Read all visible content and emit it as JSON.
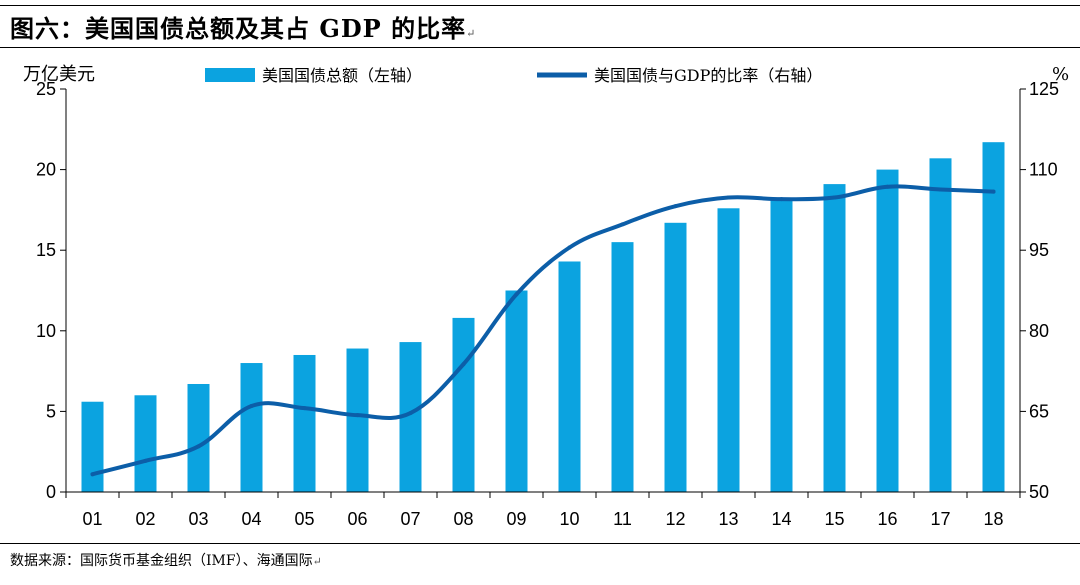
{
  "figure": {
    "title": "图六：美国国债总额及其占 GDP 的比率",
    "source": "数据来源：国际货币基金组织（IMF）、海通国际",
    "paragraph_mark": "↵"
  },
  "colors": {
    "bar": "#0BA3E0",
    "line": "#0C5EA8",
    "axis": "#000000"
  },
  "chart_data": {
    "type": "bar",
    "title": "",
    "categories": [
      "01",
      "02",
      "03",
      "04",
      "05",
      "06",
      "07",
      "08",
      "09",
      "10",
      "11",
      "12",
      "13",
      "14",
      "15",
      "16",
      "17",
      "18"
    ],
    "series": [
      {
        "name": "美国国债总额（左轴）",
        "type": "bar",
        "axis": "left",
        "values": [
          5.6,
          6.0,
          6.7,
          8.0,
          8.5,
          8.9,
          9.3,
          10.8,
          12.5,
          14.3,
          15.5,
          16.7,
          17.6,
          18.2,
          19.1,
          20.0,
          20.7,
          21.7
        ]
      },
      {
        "name": "美国国债与GDP的比率（右轴）",
        "type": "line",
        "axis": "right",
        "values": [
          53.3,
          55.8,
          58.5,
          66.0,
          65.6,
          64.3,
          64.7,
          73.8,
          86.8,
          95.5,
          99.8,
          103.2,
          104.8,
          104.5,
          104.8,
          106.8,
          106.3,
          105.9
        ]
      }
    ],
    "y_left": {
      "unit": "万亿美元",
      "ylim": [
        0,
        25
      ],
      "ticks": [
        0,
        5,
        10,
        15,
        20,
        25
      ]
    },
    "y_right": {
      "unit": "%",
      "ylim": [
        50,
        125
      ],
      "ticks": [
        50,
        65,
        80,
        95,
        110,
        125
      ]
    },
    "grid": false,
    "legend_position": "top"
  }
}
